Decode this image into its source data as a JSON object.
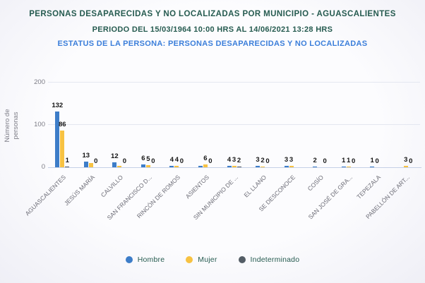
{
  "header": {
    "title": "PERSONAS DESAPARECIDAS Y NO LOCALIZADAS POR MUNICIPIO - AGUASCALIENTES",
    "period": "PERIODO DEL 15/03/1964 10:00 HRS AL 14/06/2021 13:28 HRS",
    "status": "ESTATUS DE LA PERSONA: PERSONAS DESAPARECIDAS Y NO LOCALIZADAS"
  },
  "colors": {
    "title_green": "#265b50",
    "status_blue": "#3b7eda",
    "hombre": "#3d7dc8",
    "mujer": "#f7c242",
    "indeterminado": "#545d66",
    "grid": "#e4e7f0",
    "axis": "#c5d0e6",
    "tick_text": "#7d7d87"
  },
  "chart_data": {
    "type": "bar",
    "title": "PERSONAS DESAPARECIDAS Y NO LOCALIZADAS POR MUNICIPIO - AGUASCALIENTES",
    "subtitle": "PERIODO DEL 15/03/1964 10:00 HRS AL 14/06/2021 13:28 HRS",
    "ylabel": "Número de personas",
    "xlabel": "",
    "ylim": [
      0,
      200
    ],
    "yticks": [
      0,
      100,
      200
    ],
    "grid": true,
    "legend_position": "bottom",
    "categories": [
      "AGUASCALIENTES",
      "JESÚS MARÍA",
      "CALVILLO",
      "SAN FRANCISCO D...",
      "RINCÓN DE ROMOS",
      "ASIENTOS",
      "SIN MUNICIPIO DE ...",
      "EL LLANO",
      "SE DESCONOCE",
      "COSÍO",
      "SAN JOSÉ DE GRA...",
      "TEPEZALA",
      "PABELLÓN DE ART..."
    ],
    "series": [
      {
        "name": "Hombre",
        "color": "#3d7dc8",
        "values": [
          132,
          13,
          12,
          6,
          4,
          3,
          4,
          3,
          3,
          2,
          1,
          1,
          0
        ],
        "shown_labels": [
          "132",
          "13",
          "12",
          "6",
          "4",
          null,
          "4",
          "3",
          "3",
          "2",
          "1",
          "1",
          null
        ]
      },
      {
        "name": "Mujer",
        "color": "#f7c242",
        "values": [
          86,
          10,
          3,
          5,
          4,
          6,
          3,
          2,
          3,
          0,
          1,
          0,
          3
        ],
        "shown_labels": [
          "86",
          null,
          null,
          "5",
          "4",
          "6",
          "3",
          "2",
          "3",
          null,
          "1",
          "0",
          "3"
        ]
      },
      {
        "name": "Indeterminado",
        "color": "#545d66",
        "values": [
          1,
          0,
          0,
          0,
          0,
          0,
          2,
          0,
          0,
          0,
          0,
          0,
          0
        ],
        "shown_labels": [
          "1",
          "0",
          "0",
          "0",
          "0",
          "0",
          "2",
          "0",
          null,
          "0",
          "0",
          null,
          "0"
        ]
      }
    ]
  },
  "legend": {
    "items": [
      {
        "label": "Hombre",
        "color": "#3d7dc8"
      },
      {
        "label": "Mujer",
        "color": "#f7c242"
      },
      {
        "label": "Indeterminado",
        "color": "#545d66"
      }
    ]
  }
}
